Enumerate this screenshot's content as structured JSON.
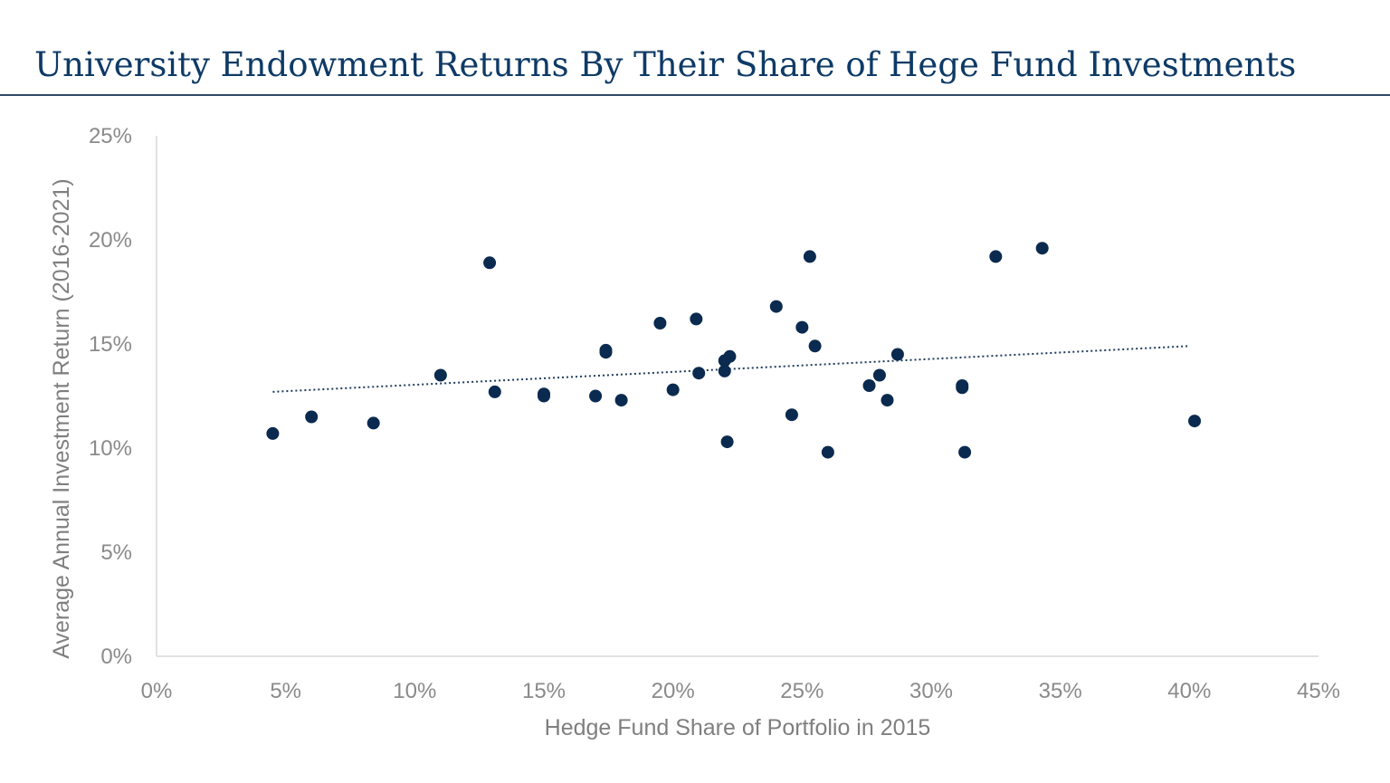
{
  "chart_data": {
    "type": "scatter",
    "title": "University Endowment Returns By Their Share of Hege Fund Investments",
    "xlabel": "Hedge Fund Share of Portfolio in 2015",
    "ylabel": "Average Annual Investment Return (2016-2021)",
    "xlim": [
      0,
      45
    ],
    "ylim": [
      0,
      25
    ],
    "x_ticks": [
      "0%",
      "5%",
      "10%",
      "15%",
      "20%",
      "25%",
      "30%",
      "35%",
      "40%",
      "45%"
    ],
    "y_ticks": [
      "0%",
      "5%",
      "10%",
      "15%",
      "20%",
      "25%"
    ],
    "grid": false,
    "legend": "none",
    "trendline": {
      "type": "linear",
      "x_start": 4.5,
      "y_start": 12.7,
      "x_end": 40.0,
      "y_end": 14.9
    },
    "point_color": "#0b2a4f",
    "trendline_color": "#1f3b5c",
    "points": [
      {
        "x": 4.5,
        "y": 10.7
      },
      {
        "x": 6.0,
        "y": 11.5
      },
      {
        "x": 8.4,
        "y": 11.2
      },
      {
        "x": 11.0,
        "y": 13.5
      },
      {
        "x": 12.9,
        "y": 18.9
      },
      {
        "x": 13.1,
        "y": 12.7
      },
      {
        "x": 15.0,
        "y": 12.6
      },
      {
        "x": 15.0,
        "y": 12.5
      },
      {
        "x": 17.0,
        "y": 12.5
      },
      {
        "x": 17.4,
        "y": 14.7
      },
      {
        "x": 17.4,
        "y": 14.6
      },
      {
        "x": 18.0,
        "y": 12.3
      },
      {
        "x": 19.5,
        "y": 16.0
      },
      {
        "x": 20.0,
        "y": 12.8
      },
      {
        "x": 20.9,
        "y": 16.2
      },
      {
        "x": 21.0,
        "y": 13.6
      },
      {
        "x": 22.0,
        "y": 14.2
      },
      {
        "x": 22.0,
        "y": 13.7
      },
      {
        "x": 22.1,
        "y": 10.3
      },
      {
        "x": 22.2,
        "y": 14.4
      },
      {
        "x": 24.0,
        "y": 16.8
      },
      {
        "x": 24.6,
        "y": 11.6
      },
      {
        "x": 25.0,
        "y": 15.8
      },
      {
        "x": 25.3,
        "y": 19.2
      },
      {
        "x": 25.5,
        "y": 14.9
      },
      {
        "x": 26.0,
        "y": 9.8
      },
      {
        "x": 27.6,
        "y": 13.0
      },
      {
        "x": 28.0,
        "y": 13.5
      },
      {
        "x": 28.3,
        "y": 12.3
      },
      {
        "x": 28.7,
        "y": 14.5
      },
      {
        "x": 31.2,
        "y": 13.0
      },
      {
        "x": 31.2,
        "y": 12.9
      },
      {
        "x": 31.3,
        "y": 9.8
      },
      {
        "x": 32.5,
        "y": 19.2
      },
      {
        "x": 34.3,
        "y": 19.6
      },
      {
        "x": 40.2,
        "y": 11.3
      }
    ]
  }
}
